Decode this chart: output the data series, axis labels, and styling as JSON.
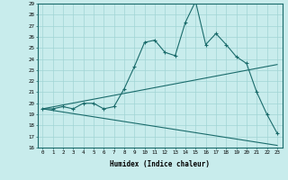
{
  "xlabel": "Humidex (Indice chaleur)",
  "xlim": [
    -0.5,
    23.5
  ],
  "ylim": [
    16,
    29
  ],
  "yticks": [
    16,
    17,
    18,
    19,
    20,
    21,
    22,
    23,
    24,
    25,
    26,
    27,
    28,
    29
  ],
  "xticks": [
    0,
    1,
    2,
    3,
    4,
    5,
    6,
    7,
    8,
    9,
    10,
    11,
    12,
    13,
    14,
    15,
    16,
    17,
    18,
    19,
    20,
    21,
    22,
    23
  ],
  "bg_color": "#c8ecec",
  "line_color": "#1a6b6b",
  "grid_color": "#a0d4d4",
  "main_line_x": [
    0,
    1,
    2,
    3,
    4,
    5,
    6,
    7,
    8,
    9,
    10,
    11,
    12,
    13,
    14,
    15,
    16,
    17,
    18,
    19,
    20,
    21,
    22,
    23
  ],
  "main_line_y": [
    19.5,
    19.5,
    19.7,
    19.5,
    20.0,
    20.0,
    19.5,
    19.7,
    21.3,
    23.3,
    25.5,
    25.7,
    24.6,
    24.3,
    27.3,
    29.2,
    25.3,
    26.3,
    25.3,
    24.2,
    23.6,
    21.0,
    19.0,
    17.3
  ],
  "upper_line_x": [
    0,
    23
  ],
  "upper_line_y": [
    19.5,
    23.5
  ],
  "lower_line_x": [
    0,
    23
  ],
  "lower_line_y": [
    19.5,
    16.2
  ],
  "marker": "+"
}
